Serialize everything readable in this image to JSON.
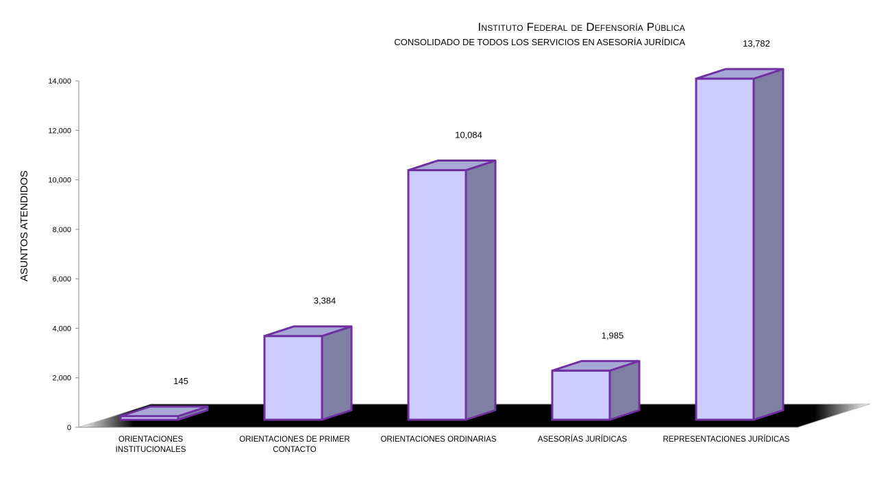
{
  "chart_data": {
    "type": "bar",
    "title": "Instituto Federal de Defensoría Pública",
    "subtitle": "CONSOLIDADO DE TODOS LOS SERVICIOS EN ASESORÍA JURÍDICA",
    "xlabel": "",
    "ylabel": "ASUNTOS ATENDIDOS",
    "ylim": [
      0,
      14000
    ],
    "yticks": [
      "0",
      "2,000",
      "4,000",
      "6,000",
      "8,000",
      "10,000",
      "12,000",
      "14,000"
    ],
    "categories": [
      [
        "ORIENTACIONES",
        "INSTITUCIONALES"
      ],
      [
        "ORIENTACIONES DE PRIMER",
        "CONTACTO"
      ],
      [
        "ORIENTACIONES ORDINARIAS"
      ],
      [
        "ASESORÍAS JURÍDICAS"
      ],
      [
        "REPRESENTACIONES JURÍDICAS"
      ]
    ],
    "values": [
      145,
      3384,
      10084,
      1985,
      13782
    ],
    "data_labels": [
      "145",
      "3,384",
      "10,084",
      "1,985",
      "13,782"
    ],
    "style": "3d-column",
    "grid": false,
    "legend": "none",
    "colors": {
      "front": "#ccccff",
      "side": "#7f7fa6",
      "top": "#a8a8d6",
      "outline": "#7030a0",
      "floor": "#000000"
    }
  }
}
